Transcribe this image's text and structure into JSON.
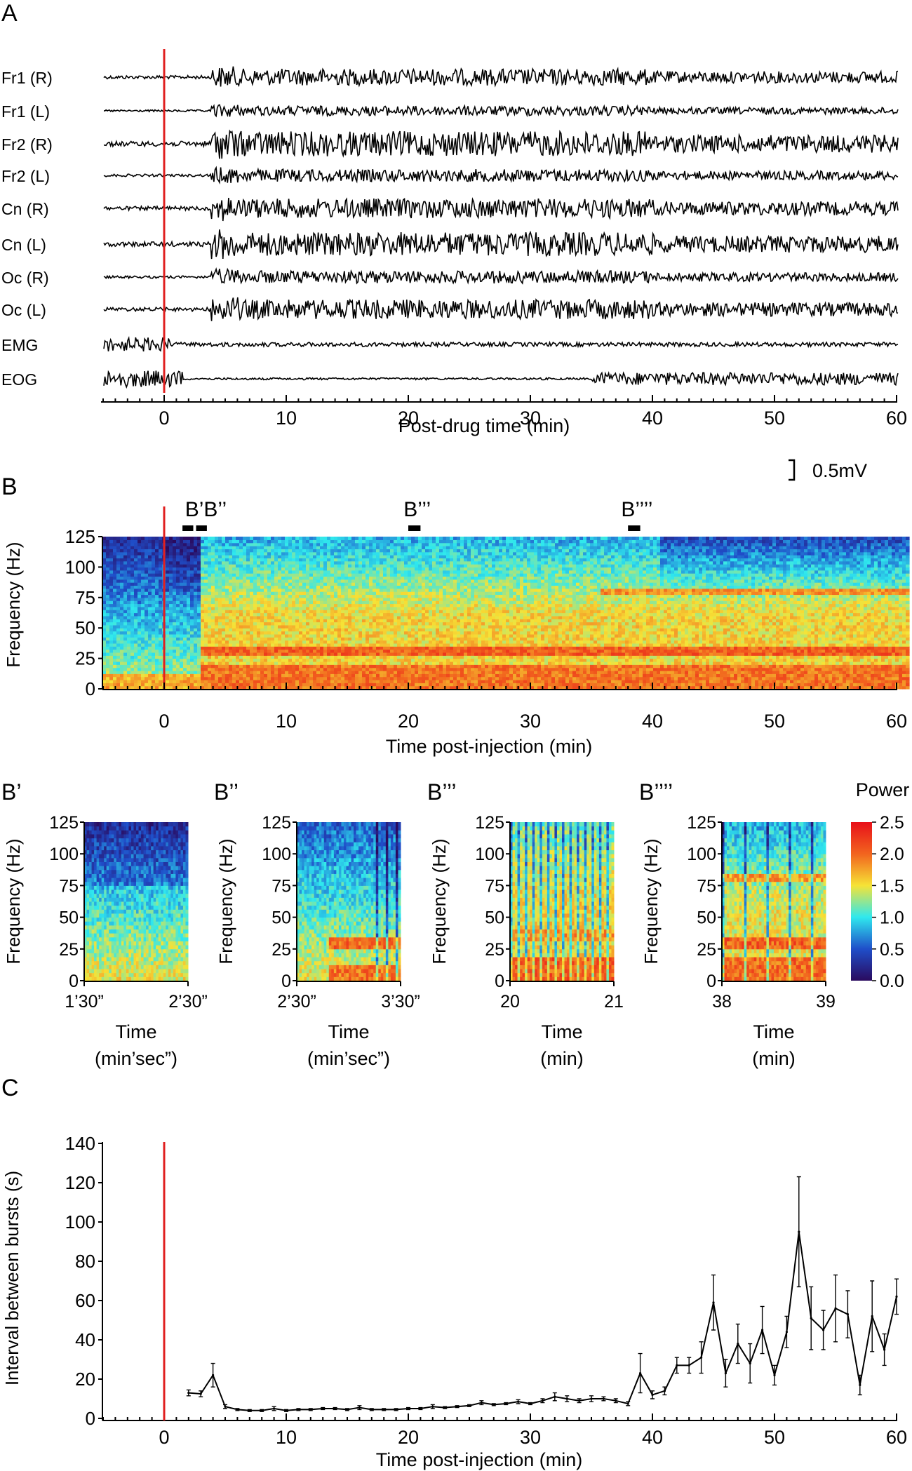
{
  "panels": {
    "A": "A",
    "B": "B",
    "Bp": "B’",
    "Bpp": "B’’",
    "Bppp": "B’’’",
    "Bpppp": "B’’’’",
    "C": "C"
  },
  "colors": {
    "injection_line": "#e02020",
    "trace": "#000000"
  },
  "chart_data": [
    {
      "id": "A",
      "type": "line",
      "xlabel": "Post-drug time (min)",
      "xlim": [
        -5,
        60
      ],
      "x_ticks": [
        0,
        10,
        20,
        30,
        40,
        50,
        60
      ],
      "scale_bar": "0.5mV",
      "channels": [
        {
          "name": "Fr1 (R)",
          "amp": 0.6
        },
        {
          "name": "Fr1 (L)",
          "amp": 0.35
        },
        {
          "name": "Fr2 (R)",
          "amp": 0.9
        },
        {
          "name": "Fr2 (L)",
          "amp": 0.45
        },
        {
          "name": "Cn (R)",
          "amp": 0.7
        },
        {
          "name": "Cn (L)",
          "amp": 0.85
        },
        {
          "name": "Oc (R)",
          "amp": 0.45
        },
        {
          "name": "Oc (L)",
          "amp": 0.7
        },
        {
          "name": "EMG",
          "amp": 0.25
        },
        {
          "name": "EOG",
          "amp": 0.5
        }
      ],
      "injection_time": 0
    },
    {
      "id": "B",
      "type": "heatmap",
      "xlabel": "Time post-injection (min)",
      "ylabel": "Frequency (Hz)",
      "xlim": [
        -5,
        60
      ],
      "ylim": [
        0,
        125
      ],
      "x_ticks": [
        0,
        10,
        20,
        30,
        40,
        50,
        60
      ],
      "y_ticks": [
        0,
        25,
        50,
        75,
        100,
        125
      ],
      "markers": [
        {
          "label": "B’B’’",
          "start": 1.5,
          "end": 3.5
        },
        {
          "label": "B’’’",
          "start": 20,
          "end": 21
        },
        {
          "label": "B’’’’",
          "start": 38,
          "end": 39
        }
      ],
      "injection_time": 0
    },
    {
      "id": "Bp",
      "type": "heatmap",
      "ylabel": "Frequency (Hz)",
      "xlabel_line1": "Time",
      "xlabel_line2": "(min’sec”)",
      "x_tick_labels": [
        "1’30”",
        "2’30”"
      ],
      "y_ticks": [
        0,
        25,
        50,
        75,
        100,
        125
      ],
      "ylim": [
        0,
        125
      ]
    },
    {
      "id": "Bpp",
      "type": "heatmap",
      "ylabel": "Frequency (Hz)",
      "xlabel_line1": "Time",
      "xlabel_line2": "(min’sec”)",
      "x_tick_labels": [
        "2’30”",
        "3’30”"
      ],
      "y_ticks": [
        0,
        25,
        50,
        75,
        100,
        125
      ],
      "ylim": [
        0,
        125
      ]
    },
    {
      "id": "Bppp",
      "type": "heatmap",
      "ylabel": "Frequency (Hz)",
      "xlabel_line1": "Time",
      "xlabel_line2": "(min)",
      "x_tick_labels": [
        "20",
        "21"
      ],
      "y_ticks": [
        0,
        25,
        50,
        75,
        100,
        125
      ],
      "ylim": [
        0,
        125
      ]
    },
    {
      "id": "Bpppp",
      "type": "heatmap",
      "ylabel": "Frequency (Hz)",
      "xlabel_line1": "Time",
      "xlabel_line2": "(min)",
      "x_tick_labels": [
        "38",
        "39"
      ],
      "y_ticks": [
        0,
        25,
        50,
        75,
        100,
        125
      ],
      "ylim": [
        0,
        125
      ]
    },
    {
      "id": "colorbar",
      "title": "Power",
      "range": [
        0,
        2.5
      ],
      "ticks": [
        "0.0",
        "0.5",
        "1.0",
        "1.5",
        "2.0",
        "2.5"
      ]
    },
    {
      "id": "C",
      "type": "line",
      "xlabel": "Time post-injection (min)",
      "ylabel": "Interval between bursts (s)",
      "xlim": [
        -5,
        60
      ],
      "ylim": [
        0,
        140
      ],
      "x_ticks": [
        0,
        10,
        20,
        30,
        40,
        50,
        60
      ],
      "y_ticks": [
        0,
        20,
        40,
        60,
        80,
        100,
        120,
        140
      ],
      "injection_time": 0,
      "x": [
        2,
        3,
        4,
        5,
        6,
        7,
        8,
        9,
        10,
        11,
        12,
        13,
        14,
        15,
        16,
        17,
        18,
        19,
        20,
        21,
        22,
        23,
        24,
        25,
        26,
        27,
        28,
        29,
        30,
        31,
        32,
        33,
        34,
        35,
        36,
        37,
        38,
        39,
        40,
        41,
        42,
        43,
        44,
        45,
        46,
        47,
        48,
        49,
        50,
        51,
        52,
        53,
        54,
        55,
        56,
        57,
        58,
        59,
        60
      ],
      "y": [
        13,
        12.5,
        22,
        6,
        4.5,
        4,
        4,
        5,
        4,
        4.5,
        4.5,
        5,
        5,
        4.5,
        5.5,
        4.5,
        4.5,
        4.5,
        5,
        5,
        6,
        5.5,
        6,
        6.5,
        8,
        7,
        7.5,
        8.5,
        7.5,
        9,
        11,
        10,
        9,
        10,
        10,
        9,
        7.5,
        23,
        12,
        14,
        27,
        27,
        31,
        59,
        23,
        38,
        28,
        45,
        22,
        44,
        95,
        51,
        45,
        56,
        53,
        17,
        52,
        35,
        62
      ],
      "err": [
        1.5,
        1.5,
        6,
        1,
        0.5,
        0.5,
        0.5,
        1,
        0.5,
        0.5,
        0.5,
        0.5,
        0.5,
        0.5,
        1,
        0.5,
        0.5,
        0.5,
        0.5,
        0.5,
        1,
        0.5,
        0.5,
        0.5,
        1,
        0.5,
        0.5,
        1,
        0.5,
        1,
        2,
        1.5,
        1,
        1.5,
        1,
        1,
        1,
        10,
        2,
        2,
        4,
        4,
        8,
        14,
        7,
        10,
        10,
        12,
        5,
        8,
        28,
        16,
        10,
        17,
        12,
        5,
        18,
        8,
        9
      ]
    }
  ]
}
